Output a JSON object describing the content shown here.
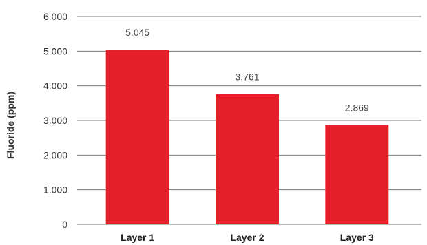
{
  "chart_data": {
    "type": "bar",
    "categories": [
      "Layer 1",
      "Layer 2",
      "Layer 3"
    ],
    "values": [
      5.045,
      3.761,
      2.869
    ],
    "data_labels": [
      "5.045",
      "3.761",
      "2.869"
    ],
    "title": "",
    "xlabel": "",
    "ylabel": "Fluoride (ppm)",
    "ylim": [
      0,
      6
    ],
    "yticks": [
      0,
      1,
      2,
      3,
      4,
      5,
      6
    ],
    "ytick_labels": [
      "0",
      "1.000",
      "2.000",
      "3.000",
      "4.000",
      "5.000",
      "6.000"
    ],
    "grid": true,
    "legend": "none",
    "bar_color": "#e5202a"
  }
}
